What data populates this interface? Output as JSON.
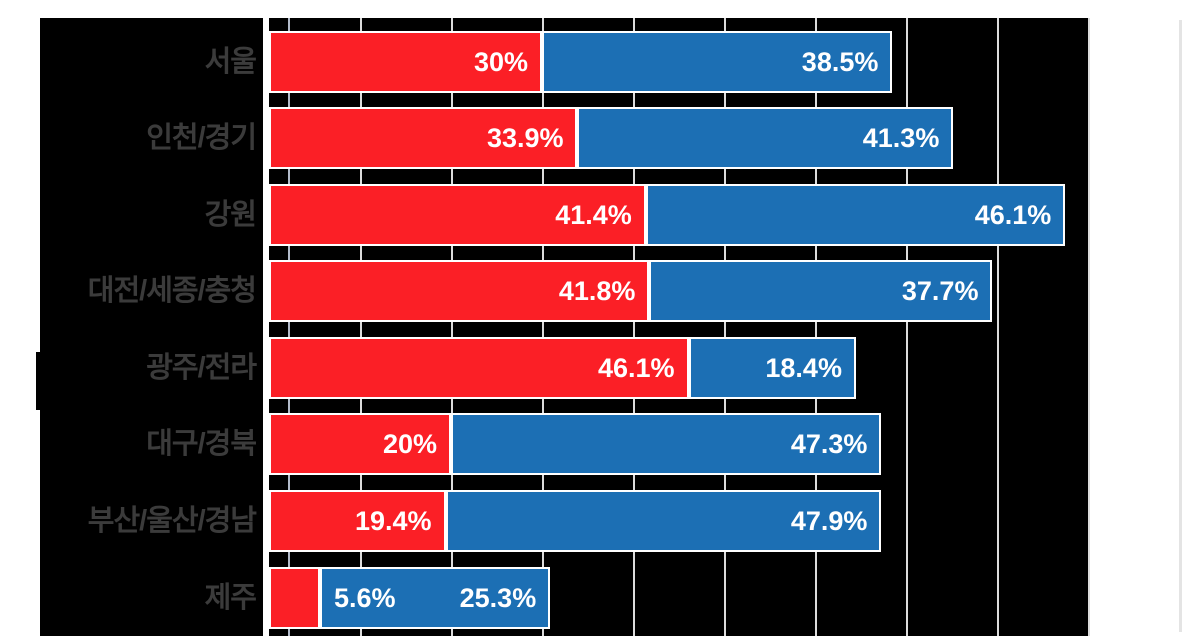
{
  "chart_data": {
    "type": "bar",
    "orientation": "horizontal",
    "stacked": true,
    "title": "",
    "xlabel": "",
    "ylabel": "",
    "categories": [
      "서울",
      "인천/경기",
      "강원",
      "대전/세종/충청",
      "광주/전라",
      "대구/경북",
      "부산/울산/경남",
      "제주"
    ],
    "series": [
      {
        "name": "red-series",
        "color": "#FB1F26",
        "values": [
          30,
          33.9,
          41.4,
          41.8,
          46.1,
          20,
          19.4,
          5.6
        ]
      },
      {
        "name": "blue-series",
        "color": "#1C6FB4",
        "values": [
          38.5,
          41.3,
          46.1,
          37.7,
          18.4,
          47.3,
          47.9,
          25.3
        ]
      }
    ],
    "data_labels": {
      "red-series": [
        "30%",
        "33.9%",
        "41.4%",
        "41.8%",
        "46.1%",
        "20%",
        "19.4%",
        "5.6%"
      ],
      "blue-series": [
        "38.5%",
        "41.3%",
        "46.1%",
        "37.7%",
        "18.4%",
        "47.3%",
        "47.9%",
        "25.3%"
      ]
    },
    "xlim": [
      0,
      90
    ],
    "gridline_interval": 10,
    "grid": true,
    "legend_position": "none"
  },
  "style": {
    "plot_background": "#000000",
    "page_background": "#FFFFFF",
    "category_label_color": "#3B3B3B",
    "data_label_color": "#FFFFFF",
    "gridline_color": "#DCDCDC",
    "axis_line_color": "#FFFFFF",
    "minor_line_color": "#C2CBDB",
    "bar_border_color": "#FFFFFF",
    "page_edge_color": "#E4E4E4"
  }
}
